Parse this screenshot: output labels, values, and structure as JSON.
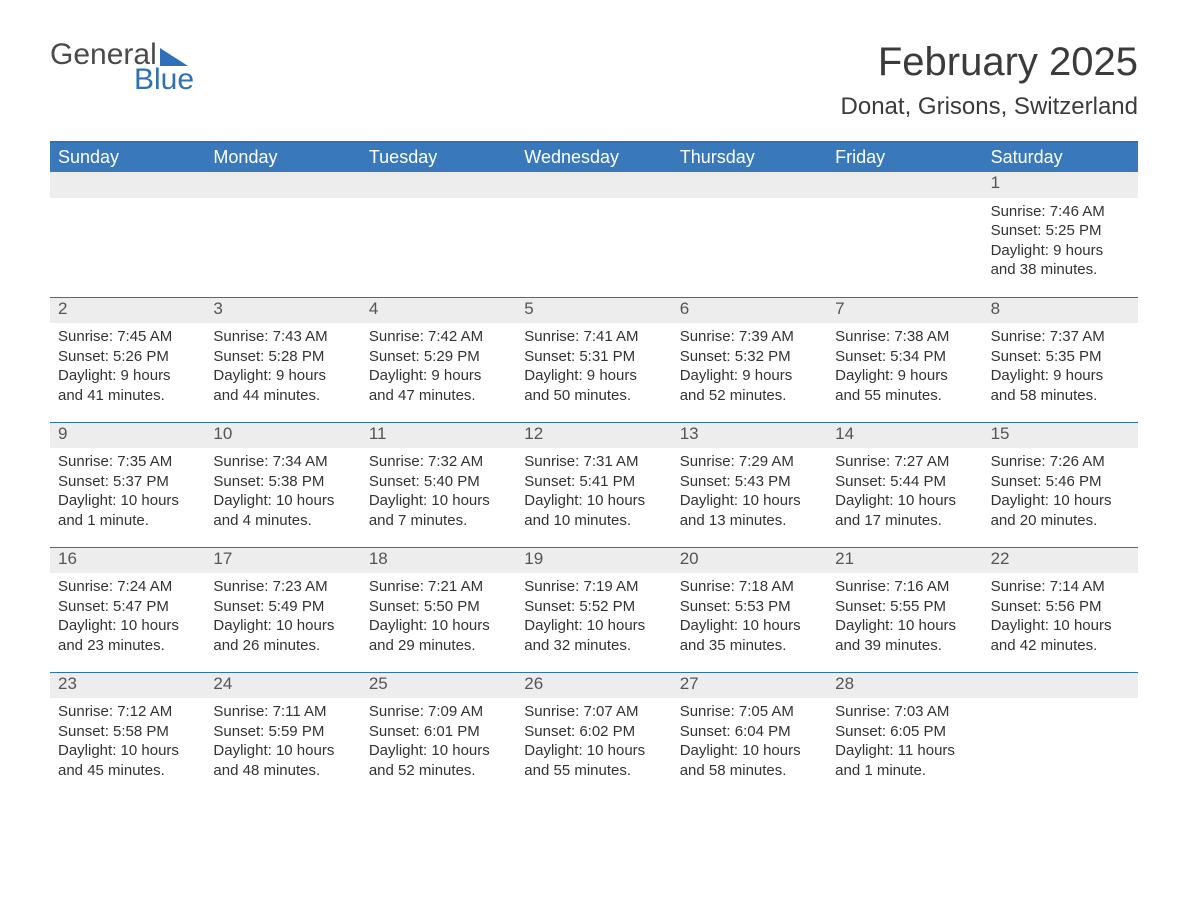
{
  "logo": {
    "top": "General",
    "bottom": "Blue"
  },
  "title": "February 2025",
  "location": "Donat, Grisons, Switzerland",
  "colors": {
    "header_bg": "#3a78bc",
    "header_text": "#ffffff",
    "rule": "#2f71b8",
    "daynum_bg": "#ededed",
    "body_text": "#333333",
    "title_text": "#3b3b3b"
  },
  "weekdays": [
    "Sunday",
    "Monday",
    "Tuesday",
    "Wednesday",
    "Thursday",
    "Friday",
    "Saturday"
  ],
  "weeks": [
    [
      {
        "n": "",
        "lines": []
      },
      {
        "n": "",
        "lines": []
      },
      {
        "n": "",
        "lines": []
      },
      {
        "n": "",
        "lines": []
      },
      {
        "n": "",
        "lines": []
      },
      {
        "n": "",
        "lines": []
      },
      {
        "n": "1",
        "lines": [
          "Sunrise: 7:46 AM",
          "Sunset: 5:25 PM",
          "Daylight: 9 hours",
          "and 38 minutes."
        ]
      }
    ],
    [
      {
        "n": "2",
        "lines": [
          "Sunrise: 7:45 AM",
          "Sunset: 5:26 PM",
          "Daylight: 9 hours",
          "and 41 minutes."
        ]
      },
      {
        "n": "3",
        "lines": [
          "Sunrise: 7:43 AM",
          "Sunset: 5:28 PM",
          "Daylight: 9 hours",
          "and 44 minutes."
        ]
      },
      {
        "n": "4",
        "lines": [
          "Sunrise: 7:42 AM",
          "Sunset: 5:29 PM",
          "Daylight: 9 hours",
          "and 47 minutes."
        ]
      },
      {
        "n": "5",
        "lines": [
          "Sunrise: 7:41 AM",
          "Sunset: 5:31 PM",
          "Daylight: 9 hours",
          "and 50 minutes."
        ]
      },
      {
        "n": "6",
        "lines": [
          "Sunrise: 7:39 AM",
          "Sunset: 5:32 PM",
          "Daylight: 9 hours",
          "and 52 minutes."
        ]
      },
      {
        "n": "7",
        "lines": [
          "Sunrise: 7:38 AM",
          "Sunset: 5:34 PM",
          "Daylight: 9 hours",
          "and 55 minutes."
        ]
      },
      {
        "n": "8",
        "lines": [
          "Sunrise: 7:37 AM",
          "Sunset: 5:35 PM",
          "Daylight: 9 hours",
          "and 58 minutes."
        ]
      }
    ],
    [
      {
        "n": "9",
        "lines": [
          "Sunrise: 7:35 AM",
          "Sunset: 5:37 PM",
          "Daylight: 10 hours",
          "and 1 minute."
        ]
      },
      {
        "n": "10",
        "lines": [
          "Sunrise: 7:34 AM",
          "Sunset: 5:38 PM",
          "Daylight: 10 hours",
          "and 4 minutes."
        ]
      },
      {
        "n": "11",
        "lines": [
          "Sunrise: 7:32 AM",
          "Sunset: 5:40 PM",
          "Daylight: 10 hours",
          "and 7 minutes."
        ]
      },
      {
        "n": "12",
        "lines": [
          "Sunrise: 7:31 AM",
          "Sunset: 5:41 PM",
          "Daylight: 10 hours",
          "and 10 minutes."
        ]
      },
      {
        "n": "13",
        "lines": [
          "Sunrise: 7:29 AM",
          "Sunset: 5:43 PM",
          "Daylight: 10 hours",
          "and 13 minutes."
        ]
      },
      {
        "n": "14",
        "lines": [
          "Sunrise: 7:27 AM",
          "Sunset: 5:44 PM",
          "Daylight: 10 hours",
          "and 17 minutes."
        ]
      },
      {
        "n": "15",
        "lines": [
          "Sunrise: 7:26 AM",
          "Sunset: 5:46 PM",
          "Daylight: 10 hours",
          "and 20 minutes."
        ]
      }
    ],
    [
      {
        "n": "16",
        "lines": [
          "Sunrise: 7:24 AM",
          "Sunset: 5:47 PM",
          "Daylight: 10 hours",
          "and 23 minutes."
        ]
      },
      {
        "n": "17",
        "lines": [
          "Sunrise: 7:23 AM",
          "Sunset: 5:49 PM",
          "Daylight: 10 hours",
          "and 26 minutes."
        ]
      },
      {
        "n": "18",
        "lines": [
          "Sunrise: 7:21 AM",
          "Sunset: 5:50 PM",
          "Daylight: 10 hours",
          "and 29 minutes."
        ]
      },
      {
        "n": "19",
        "lines": [
          "Sunrise: 7:19 AM",
          "Sunset: 5:52 PM",
          "Daylight: 10 hours",
          "and 32 minutes."
        ]
      },
      {
        "n": "20",
        "lines": [
          "Sunrise: 7:18 AM",
          "Sunset: 5:53 PM",
          "Daylight: 10 hours",
          "and 35 minutes."
        ]
      },
      {
        "n": "21",
        "lines": [
          "Sunrise: 7:16 AM",
          "Sunset: 5:55 PM",
          "Daylight: 10 hours",
          "and 39 minutes."
        ]
      },
      {
        "n": "22",
        "lines": [
          "Sunrise: 7:14 AM",
          "Sunset: 5:56 PM",
          "Daylight: 10 hours",
          "and 42 minutes."
        ]
      }
    ],
    [
      {
        "n": "23",
        "lines": [
          "Sunrise: 7:12 AM",
          "Sunset: 5:58 PM",
          "Daylight: 10 hours",
          "and 45 minutes."
        ]
      },
      {
        "n": "24",
        "lines": [
          "Sunrise: 7:11 AM",
          "Sunset: 5:59 PM",
          "Daylight: 10 hours",
          "and 48 minutes."
        ]
      },
      {
        "n": "25",
        "lines": [
          "Sunrise: 7:09 AM",
          "Sunset: 6:01 PM",
          "Daylight: 10 hours",
          "and 52 minutes."
        ]
      },
      {
        "n": "26",
        "lines": [
          "Sunrise: 7:07 AM",
          "Sunset: 6:02 PM",
          "Daylight: 10 hours",
          "and 55 minutes."
        ]
      },
      {
        "n": "27",
        "lines": [
          "Sunrise: 7:05 AM",
          "Sunset: 6:04 PM",
          "Daylight: 10 hours",
          "and 58 minutes."
        ]
      },
      {
        "n": "28",
        "lines": [
          "Sunrise: 7:03 AM",
          "Sunset: 6:05 PM",
          "Daylight: 11 hours",
          "and 1 minute."
        ]
      },
      {
        "n": "",
        "lines": []
      }
    ]
  ]
}
